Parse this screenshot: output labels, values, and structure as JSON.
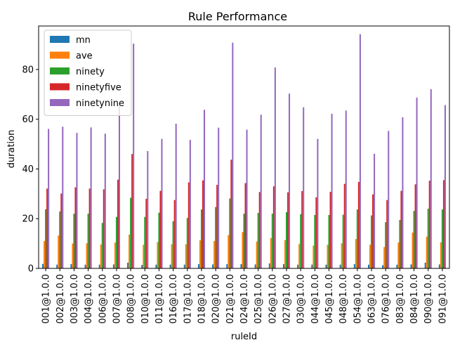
{
  "chart_data": {
    "type": "bar",
    "title": "Rule Performance",
    "xlabel": "ruleId",
    "ylabel": "duration",
    "ylim": [
      0,
      97.5
    ],
    "yticks": [
      0,
      20,
      40,
      60,
      80
    ],
    "grid": false,
    "legend_position": "top-left",
    "categories": [
      "001@1.0.0",
      "002@1.0.0",
      "003@1.0.0",
      "004@1.0.0",
      "006@1.0.0",
      "007@1.0.0",
      "008@1.0.0",
      "010@1.0.0",
      "011@1.0.0",
      "016@1.0.0",
      "017@1.0.0",
      "018@1.0.0",
      "020@1.0.0",
      "021@1.0.0",
      "024@1.0.0",
      "025@1.0.0",
      "026@1.0.0",
      "027@1.0.0",
      "030@1.0.0",
      "044@1.0.0",
      "045@1.0.0",
      "048@1.0.0",
      "054@1.0.0",
      "063@1.0.0",
      "076@1.0.0",
      "083@1.0.0",
      "084@1.0.0",
      "090@1.0.0",
      "091@1.0.0"
    ],
    "series": [
      {
        "name": "mn",
        "color": "#1f77b4",
        "values": [
          1.8,
          1.5,
          1.7,
          1.5,
          1.5,
          1.6,
          2.3,
          1.4,
          1.5,
          1.5,
          1.5,
          1.7,
          1.6,
          1.7,
          1.7,
          1.6,
          2.0,
          1.7,
          1.5,
          1.5,
          1.5,
          1.5,
          1.7,
          1.5,
          1.3,
          1.5,
          1.6,
          2.3,
          1.6
        ]
      },
      {
        "name": "ave",
        "color": "#ff7f0e",
        "values": [
          11,
          13.2,
          10,
          10.1,
          9.6,
          10.4,
          13.6,
          9.5,
          10.6,
          9.7,
          9.7,
          11.3,
          11,
          13.4,
          14.6,
          10.8,
          12.2,
          11.4,
          9.8,
          9.2,
          9.5,
          10.1,
          11.8,
          9.5,
          8.6,
          10.4,
          14.4,
          12.8,
          10.5
        ]
      },
      {
        "name": "ninety",
        "color": "#2ca02c",
        "values": [
          23.8,
          22.9,
          22,
          22,
          18.3,
          20.7,
          28.4,
          20.7,
          22.4,
          19,
          20.3,
          23.7,
          24.7,
          28.1,
          22,
          22.3,
          22,
          22.6,
          21.8,
          21.5,
          21.5,
          21.6,
          23.7,
          21.3,
          18.6,
          19.5,
          23.1,
          24,
          23.7
        ]
      },
      {
        "name": "ninetyfive",
        "color": "#d62728",
        "values": [
          32.1,
          30.1,
          32.6,
          32.1,
          31.8,
          35.7,
          46,
          28,
          31.2,
          27.5,
          34.6,
          35.4,
          33.6,
          43.7,
          34.3,
          30.7,
          33,
          30.6,
          31.1,
          28.6,
          30.8,
          34,
          34.8,
          29.8,
          27.5,
          31.2,
          33.8,
          35.3,
          35.5
        ]
      },
      {
        "name": "ninetynine",
        "color": "#9467bd",
        "values": [
          56.1,
          57,
          54.5,
          56.7,
          54.2,
          66.5,
          90.4,
          47.2,
          52.1,
          58.2,
          51.7,
          63.8,
          56.6,
          90.8,
          55.8,
          61.8,
          80.8,
          70.3,
          64.8,
          52.1,
          62.2,
          63.5,
          94.2,
          46.1,
          55.3,
          60.8,
          68.7,
          72.1,
          65.7
        ]
      }
    ]
  }
}
